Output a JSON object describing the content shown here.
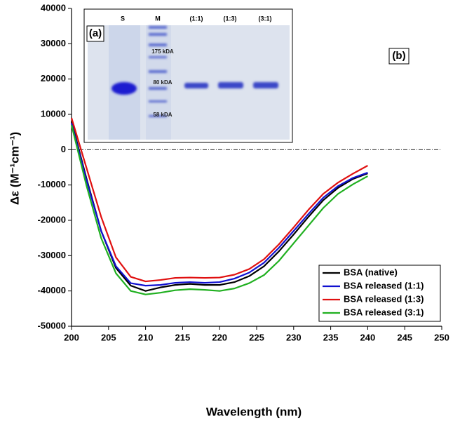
{
  "chart_data": {
    "type": "line",
    "ylabel": "Δε (M⁻¹cm⁻¹)",
    "xlabel": "Wavelength (nm)",
    "x": [
      200,
      202,
      204,
      206,
      208,
      210,
      212,
      214,
      216,
      218,
      220,
      222,
      224,
      226,
      228,
      230,
      232,
      234,
      236,
      238,
      240
    ],
    "series": [
      {
        "name": "BSA (native)",
        "color": "#000000",
        "values": [
          8000,
          -8000,
          -23000,
          -33500,
          -38500,
          -40000,
          -39000,
          -38300,
          -38000,
          -38300,
          -38300,
          -37500,
          -35800,
          -33000,
          -28800,
          -24000,
          -19000,
          -14300,
          -10800,
          -8300,
          -6700
        ]
      },
      {
        "name": "BSA released (1:1)",
        "color": "#1010d0",
        "values": [
          7500,
          -8500,
          -23000,
          -33000,
          -37800,
          -38500,
          -38300,
          -37700,
          -37500,
          -37700,
          -37500,
          -36500,
          -34800,
          -32000,
          -27800,
          -23000,
          -18200,
          -13600,
          -10300,
          -8000,
          -6500
        ]
      },
      {
        "name": "BSA released (1:3)",
        "color": "#e01010",
        "values": [
          9000,
          -5000,
          -19000,
          -30500,
          -36000,
          -37300,
          -36900,
          -36300,
          -36200,
          -36300,
          -36200,
          -35400,
          -33800,
          -31000,
          -26800,
          -22000,
          -17000,
          -12500,
          -9300,
          -6800,
          -4500
        ]
      },
      {
        "name": "BSA released (3:1)",
        "color": "#20b020",
        "values": [
          7000,
          -10000,
          -25000,
          -35000,
          -40000,
          -41000,
          -40500,
          -39800,
          -39500,
          -39700,
          -40000,
          -39300,
          -37800,
          -35500,
          -31500,
          -26500,
          -21500,
          -16500,
          -12500,
          -9800,
          -7500
        ]
      }
    ],
    "xlim": [
      200,
      250
    ],
    "xticks": [
      200,
      205,
      210,
      215,
      220,
      225,
      230,
      235,
      240,
      245,
      250
    ],
    "ylim": [
      -50000,
      40000
    ],
    "yticks": [
      -50000,
      -40000,
      -30000,
      -20000,
      -10000,
      0,
      10000,
      20000,
      30000,
      40000
    ],
    "reference_line": 0,
    "legend": "lower right",
    "panel_labels": [
      "(a)",
      "(b)"
    ],
    "inset": {
      "lanes": [
        "S",
        "M",
        "(1:1)",
        "(1:3)",
        "(3:1)"
      ],
      "markers": [
        "175 kDA",
        "80 kDA",
        "58 kDA"
      ]
    }
  }
}
